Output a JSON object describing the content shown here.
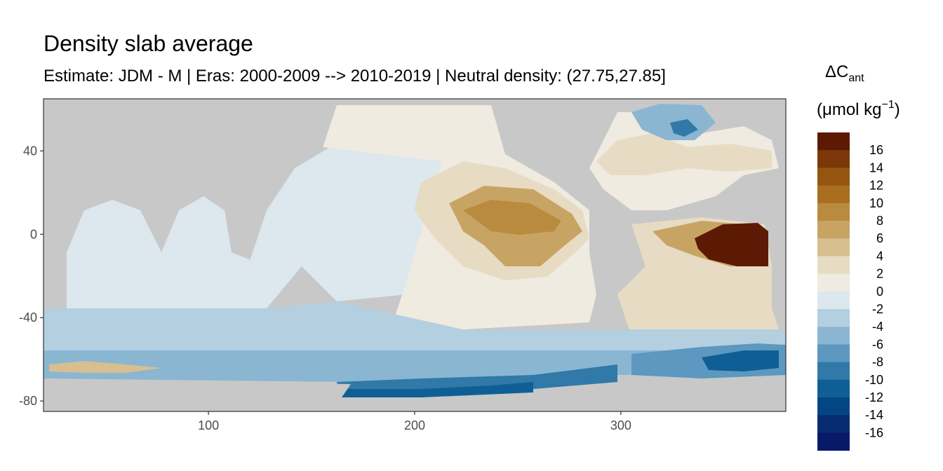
{
  "chart_data": {
    "type": "heatmap",
    "title": "Density slab average",
    "subtitle": "Estimate: JDM - M | Eras: 2000-2009 --> 2010-2019 | Neutral density: (27.75,27.85]",
    "xlabel": "",
    "ylabel": "",
    "xlim": [
      20,
      380
    ],
    "ylim": [
      -85,
      65
    ],
    "x_ticks": [
      100,
      200,
      300
    ],
    "y_ticks": [
      40,
      0,
      -40,
      -80
    ],
    "grid": false,
    "colors": {
      "land": "#c8c8c8",
      "no_data": "#ffffff"
    },
    "legend": {
      "title": "ΔC",
      "title_subscript": "ant",
      "unit_prefix": "(μmol kg",
      "unit_superscript": "−1",
      "unit_suffix": ")",
      "placement": "right",
      "bins": [
        {
          "label": "16",
          "color": "#5c1a05"
        },
        {
          "label": "14",
          "color": "#7c3809"
        },
        {
          "label": "12",
          "color": "#955410"
        },
        {
          "label": "10",
          "color": "#a96e1e"
        },
        {
          "label": "8",
          "color": "#b98b3e"
        },
        {
          "label": "6",
          "color": "#c8a464"
        },
        {
          "label": "4",
          "color": "#d7bf90"
        },
        {
          "label": "2",
          "color": "#e7dcc3"
        },
        {
          "label": "0",
          "color": "#efebe1"
        },
        {
          "label": "-2",
          "color": "#dce7ee"
        },
        {
          "label": "-4",
          "color": "#b3cfe0"
        },
        {
          "label": "-6",
          "color": "#8ab6d2"
        },
        {
          "label": "-8",
          "color": "#5c98bf"
        },
        {
          "label": "-10",
          "color": "#3079a8"
        },
        {
          "label": "-12",
          "color": "#0f5f96"
        },
        {
          "label": "-14",
          "color": "#044586"
        },
        {
          "label": "-16",
          "color": "#082c70"
        }
      ],
      "bottom_color": "#08196a"
    },
    "regions": [
      {
        "name": "atlantic-ne-positive",
        "x": [
          330,
          375
        ],
        "y": [
          -20,
          5
        ],
        "value": 16
      },
      {
        "name": "pacific-ne-positive",
        "x": [
          215,
          275
        ],
        "y": [
          -20,
          20
        ],
        "value": 8
      },
      {
        "name": "pacific-core-positive",
        "x": [
          235,
          255
        ],
        "y": [
          -5,
          10
        ],
        "value": 10
      },
      {
        "name": "southern-ocean-negative",
        "x": [
          165,
          300
        ],
        "y": [
          -78,
          -65
        ],
        "value": -12
      },
      {
        "name": "indian-ocean-negative",
        "x": [
          30,
          150
        ],
        "y": [
          -70,
          -55
        ],
        "value": -6
      },
      {
        "name": "north-atlantic-negative",
        "x": [
          320,
          345
        ],
        "y": [
          45,
          60
        ],
        "value": -8
      }
    ]
  }
}
